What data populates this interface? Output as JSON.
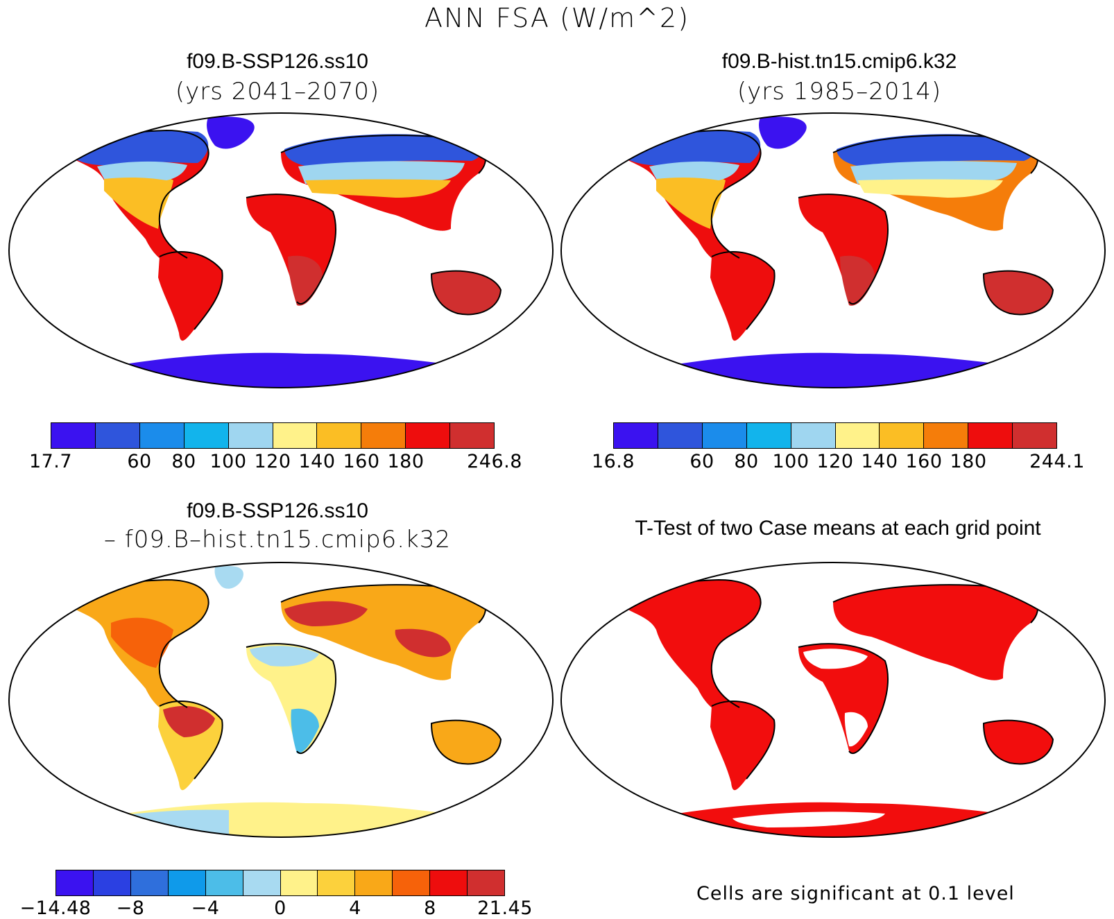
{
  "title": "ANN FSA (W/m^2)",
  "panels": [
    {
      "id": "p1",
      "title": "f09.B-SSP126.ss10",
      "subtitle": "(yrs 2041–2070)"
    },
    {
      "id": "p2",
      "title": "f09.B-hist.tn15.cmip6.k32",
      "subtitle": "(yrs 1985–2014)"
    },
    {
      "id": "p3",
      "title": "f09.B-SSP126.ss10",
      "subtitle": "– f09.B–hist.tn15.cmip6.k32"
    },
    {
      "id": "p4",
      "title": "T-Test of two Case means at each grid point",
      "subtitle": ""
    }
  ],
  "colorbars": {
    "abs_colors": [
      "#3b12f0",
      "#2f55dc",
      "#1b8ceb",
      "#12b4ec",
      "#9fd6f0",
      "#fff28a",
      "#fbbe24",
      "#f57d0a",
      "#ee0d0d",
      "#d02f2f"
    ],
    "diff_colors": [
      "#3b12f0",
      "#2b40e2",
      "#2f6fdc",
      "#0f9aea",
      "#4cbde8",
      "#a8daf1",
      "#fff28a",
      "#fcd13c",
      "#f9a818",
      "#f6620a",
      "#ee0d0d",
      "#d02f2f"
    ],
    "cb1_labels": [
      "17.7",
      "60",
      "80",
      "100",
      "120",
      "140",
      "160",
      "180",
      "246.8"
    ],
    "cb2_labels": [
      "16.8",
      "60",
      "80",
      "100",
      "120",
      "140",
      "160",
      "180",
      "244.1"
    ],
    "cb3_labels": [
      "−14.48",
      "−8",
      "−4",
      "0",
      "4",
      "8",
      "21.45"
    ]
  },
  "significance_note": "Cells are significant at 0.1 level",
  "sig_color": "#f20d0d"
}
